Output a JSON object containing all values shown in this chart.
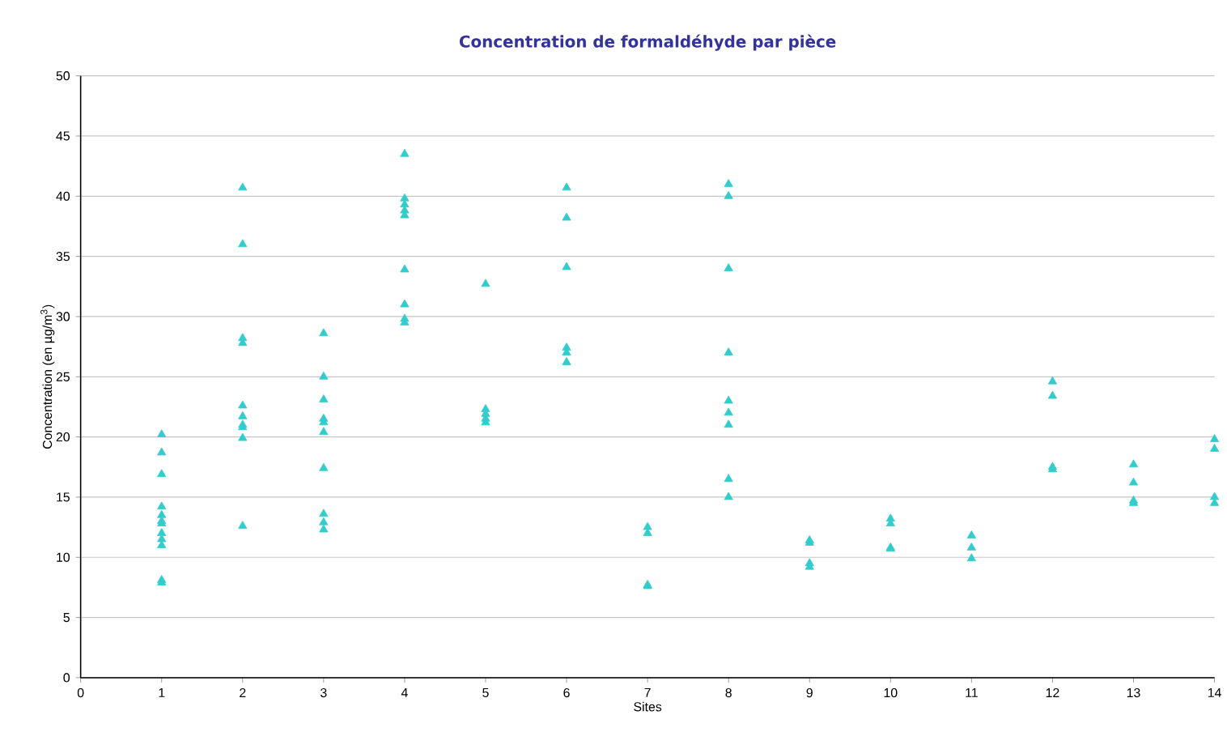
{
  "chart_data": {
    "type": "scatter",
    "title": "Concentration de formaldéhyde par pièce",
    "xlabel": "Sites",
    "ylabel": "Concentration (en µg/m$^{3}$)",
    "x": [
      1,
      1,
      1,
      1,
      1,
      1,
      1,
      1,
      1,
      1,
      1,
      1,
      2,
      2,
      2,
      2,
      2,
      2,
      2,
      2,
      2,
      2,
      3,
      3,
      3,
      3,
      3,
      3,
      3,
      3,
      3,
      3,
      4,
      4,
      4,
      4,
      4,
      4,
      4,
      4,
      4,
      5,
      5,
      5,
      5,
      5,
      6,
      6,
      6,
      6,
      6,
      6,
      7,
      7,
      7,
      7,
      8,
      8,
      8,
      8,
      8,
      8,
      8,
      8,
      8,
      9,
      9,
      9,
      9,
      10,
      10,
      10,
      10,
      11,
      11,
      11,
      12,
      12,
      12,
      12,
      13,
      13,
      13,
      13,
      14,
      14,
      14,
      14
    ],
    "values": [
      20.2,
      18.7,
      16.9,
      14.2,
      13.5,
      13.0,
      12.8,
      12.0,
      11.5,
      11.0,
      8.1,
      7.9,
      40.7,
      36.0,
      28.2,
      27.8,
      22.6,
      21.7,
      21.0,
      20.8,
      19.9,
      12.6,
      28.6,
      25.0,
      23.1,
      21.5,
      21.2,
      20.4,
      17.4,
      13.6,
      12.9,
      12.3,
      43.5,
      39.8,
      39.3,
      38.8,
      38.4,
      33.9,
      31.0,
      29.8,
      29.5,
      32.7,
      22.3,
      21.9,
      21.5,
      21.2,
      40.7,
      38.2,
      34.1,
      27.4,
      27.0,
      26.2,
      12.5,
      12.0,
      7.7,
      7.6,
      41.0,
      40.0,
      34.0,
      27.0,
      23.0,
      22.0,
      21.0,
      16.5,
      15.0,
      11.4,
      11.2,
      9.5,
      9.2,
      13.2,
      12.8,
      10.8,
      10.7,
      11.8,
      10.8,
      9.9,
      24.6,
      23.4,
      17.5,
      17.3,
      17.7,
      16.2,
      14.7,
      14.5,
      19.8,
      19.0,
      15.0,
      14.5
    ],
    "color": "#33cccc",
    "marker": "triangle",
    "xlim": [
      0,
      14
    ],
    "ylim": [
      0,
      50
    ],
    "xticks": [
      0,
      1,
      2,
      3,
      4,
      5,
      6,
      7,
      8,
      9,
      10,
      11,
      12,
      13,
      14
    ],
    "yticks": [
      0,
      5,
      10,
      15,
      20,
      25,
      30,
      35,
      40,
      45,
      50
    ],
    "grid": "y"
  }
}
